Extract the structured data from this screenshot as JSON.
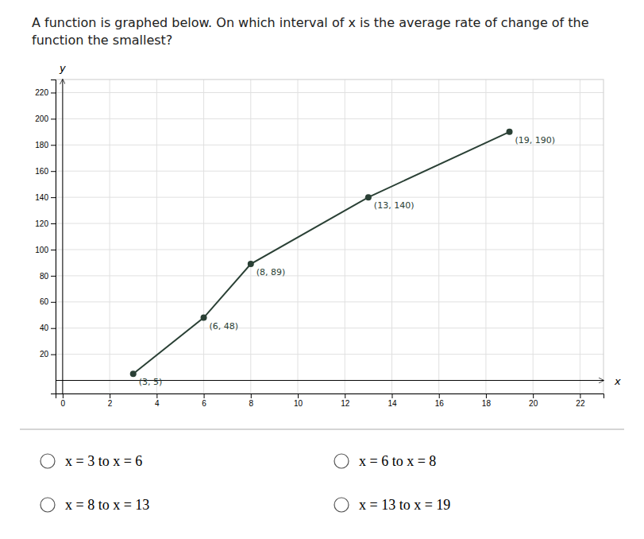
{
  "chart_data": {
    "type": "line",
    "title": "A function is graphed below. On which interval of x is the average rate of change of the function the smallest?",
    "xlabel": "x",
    "ylabel": "y",
    "x": [
      3,
      6,
      8,
      13,
      19
    ],
    "values": [
      5,
      48,
      89,
      140,
      190
    ],
    "value_labels": [
      "(3, 5)",
      "(6, 48)",
      "(8, 89)",
      "(13, 140)",
      "(19, 190)"
    ],
    "data_labels": true,
    "color": "#2a4035",
    "marker": "circle",
    "xlim": [
      -0.3,
      23
    ],
    "ylim": [
      -10,
      230
    ],
    "xticks": [
      0,
      2,
      4,
      6,
      8,
      10,
      12,
      14,
      16,
      18,
      20,
      22
    ],
    "yticks": [
      20,
      40,
      60,
      80,
      100,
      120,
      140,
      160,
      180,
      200,
      220
    ],
    "grid": true,
    "annotations": [
      "x = 3 to x = 6",
      "x = 6 to x = 8",
      "x = 8 to x = 13",
      "x = 13 to x = 19"
    ]
  }
}
